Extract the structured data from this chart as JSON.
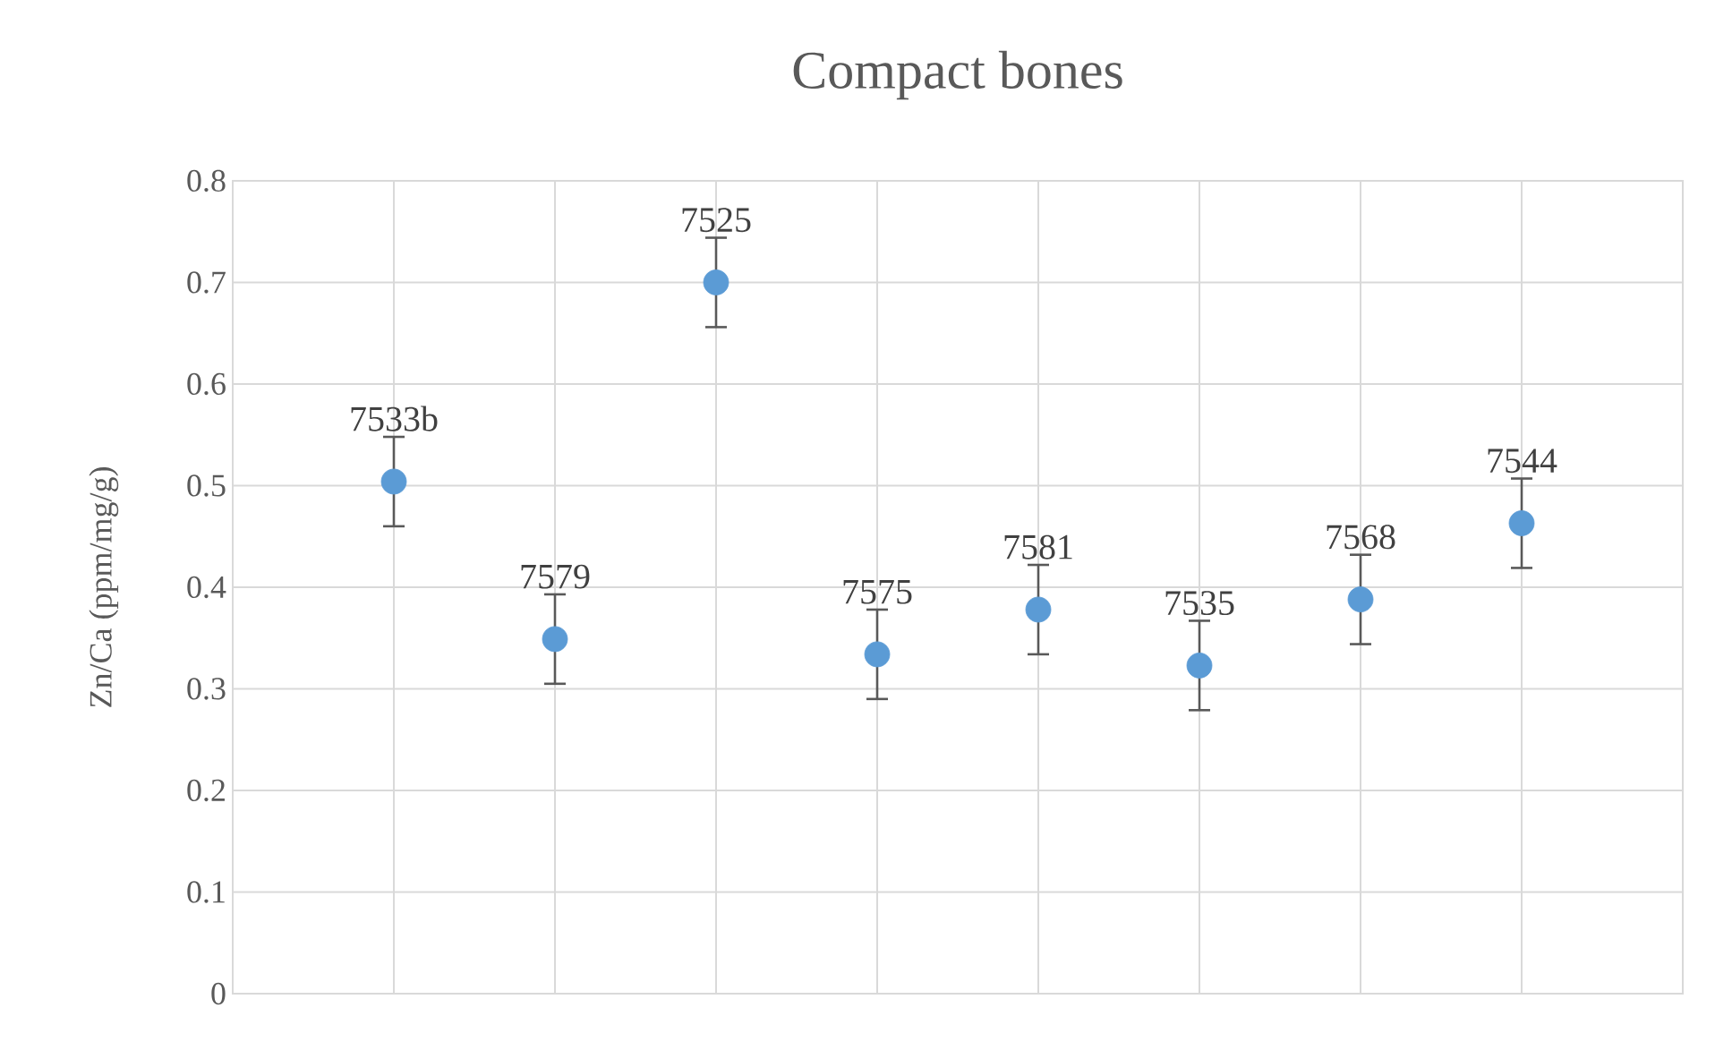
{
  "chart_data": {
    "type": "scatter",
    "title": "Compact bones",
    "ylabel": "Zn/Ca (ppm/mg/g)",
    "categories": [
      null,
      null,
      null,
      null,
      null,
      null,
      null,
      null
    ],
    "series": [
      {
        "color": "#5b9bd5",
        "values": [
          0.504,
          0.349,
          0.7,
          0.334,
          0.378,
          0.323,
          0.388,
          0.463
        ],
        "errors": [
          0.044,
          0.044,
          0.044,
          0.044,
          0.044,
          0.044,
          0.044,
          0.044
        ]
      }
    ],
    "annotations": [
      {
        "text": "7533b",
        "y": 0.504
      },
      {
        "text": "7579",
        "y": 0.349
      },
      {
        "text": "7525",
        "y": 0.7
      },
      {
        "text": "7575",
        "y": 0.334
      },
      {
        "text": "7581",
        "y": 0.378
      },
      {
        "text": "7535",
        "y": 0.323
      },
      {
        "text": "7568",
        "y": 0.388
      },
      {
        "text": "7544",
        "y": 0.463
      }
    ],
    "ylim": [
      0,
      0.8
    ],
    "yticks": [
      0,
      0.1,
      0.2,
      0.3,
      0.4,
      0.5,
      0.6,
      0.7,
      0.8
    ],
    "grid": true,
    "marker": "circle",
    "tick_labels": "y"
  }
}
